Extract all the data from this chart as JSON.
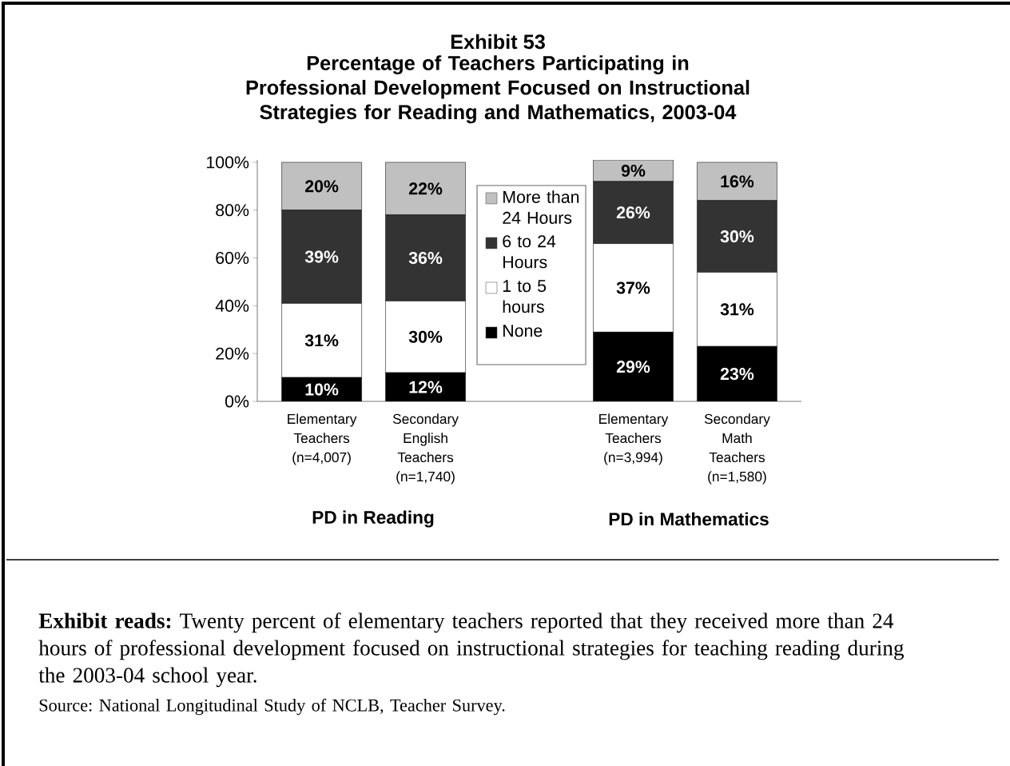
{
  "chart_data": {
    "type": "bar",
    "stacked": true,
    "title": "Exhibit 53",
    "subtitle": "Percentage of Teachers Participating in Professional Development Focused on Instructional Strategies for Reading and Mathematics, 2003-04",
    "categories": [
      "Elementary Teachers (n=4,007)",
      "Secondary English Teachers (n=1,740)",
      null,
      "Elementary Teachers (n=3,994)",
      "Secondary Math Teachers (n=1,580)"
    ],
    "series": [
      {
        "name": "None",
        "color": "#000000",
        "values": [
          10,
          12,
          null,
          29,
          23
        ],
        "value_labels": [
          "10%",
          "12%",
          null,
          "29%",
          "23%"
        ]
      },
      {
        "name": "1 to 5 hours",
        "color": "#ffffff",
        "values": [
          31,
          30,
          null,
          37,
          31
        ],
        "value_labels": [
          "31%",
          "30%",
          null,
          "37%",
          "31%"
        ]
      },
      {
        "name": "6 to 24 Hours",
        "color": "#333333",
        "values": [
          39,
          36,
          null,
          26,
          30
        ],
        "value_labels": [
          "39%",
          "36%",
          null,
          "26%",
          "30%"
        ]
      },
      {
        "name": "More than 24 Hours",
        "color": "#c0c0c0",
        "values": [
          20,
          22,
          null,
          9,
          16
        ],
        "value_labels": [
          "20%",
          "22%",
          null,
          "9%",
          "16%"
        ]
      }
    ],
    "ylim": [
      0,
      101
    ],
    "yticks": [
      {
        "value": 0,
        "label": "0%"
      },
      {
        "value": 20,
        "label": "20%"
      },
      {
        "value": 40,
        "label": "40%"
      },
      {
        "value": 60,
        "label": "60%"
      },
      {
        "value": 80,
        "label": "80%"
      },
      {
        "value": 100,
        "label": "100%"
      }
    ],
    "legend": "top",
    "annotations": [
      "PD in Reading",
      "PD in Mathematics",
      "**Exhibit reads:** Twenty percent of elementary teachers reported that they received more than 24 hours of professional development focused on instructional strategies for teaching reading during the 2003-04 school year.",
      "Source: National Longitudinal Study of NCLB, Teacher Survey."
    ]
  }
}
